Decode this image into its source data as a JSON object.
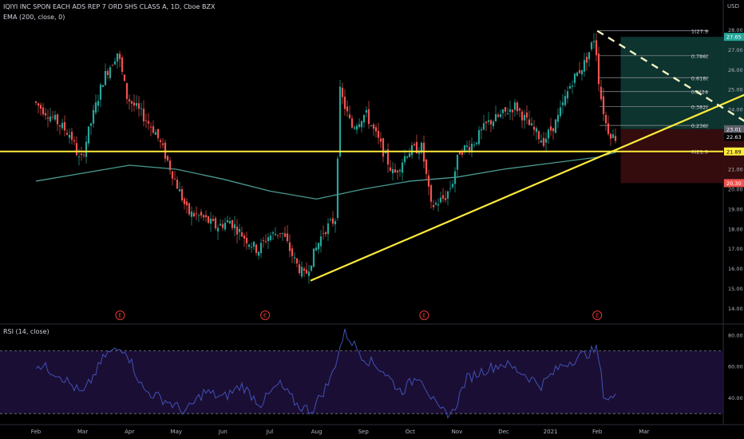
{
  "header": {
    "symbol_line": "IQIYI INC SPON EACH ADS REP 7 ORD SHS CLASS A, 1D, Cboe BZX",
    "ema_line": "EMA (200, close, 0)",
    "rsi_line": "RSI (14, close)",
    "currency": "USD"
  },
  "colors": {
    "background": "#000000",
    "up": "#26a69a",
    "down": "#ef5350",
    "trendline": "#ffeb3b",
    "ema": "#4a9b93",
    "rsi_line": "#3f51b5",
    "rsi_band": "#1e0f3a",
    "target_zone": "#0f3a34",
    "stop_zone": "#3a0d10",
    "earnings": "#e53935"
  },
  "chart_data": [
    {
      "type": "candlestick",
      "title": "IQIYI INC SPON EACH ADS REP 7 ORD SHS CLASS A, 1D, Cboe BZX",
      "x_ticks": [
        "Feb",
        "Mar",
        "Apr",
        "May",
        "Jun",
        "Jul",
        "Aug",
        "Sep",
        "Oct",
        "Nov",
        "Dec",
        "2021",
        "Feb",
        "Mar"
      ],
      "y_ticks": [
        14.0,
        15.0,
        16.0,
        17.0,
        18.0,
        19.0,
        20.0,
        21.0,
        22.0,
        23.0,
        24.0,
        25.0,
        26.0,
        27.0,
        28.0
      ],
      "ylim": [
        13.3,
        29.5
      ],
      "price_path": [
        {
          "x": 0.0,
          "y": 24.4
        },
        {
          "x": 0.4,
          "y": 23.6
        },
        {
          "x": 0.8,
          "y": 22.7
        },
        {
          "x": 1.0,
          "y": 21.3
        },
        {
          "x": 1.2,
          "y": 23.1
        },
        {
          "x": 1.5,
          "y": 25.6
        },
        {
          "x": 1.8,
          "y": 26.9
        },
        {
          "x": 2.0,
          "y": 24.6
        },
        {
          "x": 2.3,
          "y": 23.8
        },
        {
          "x": 2.6,
          "y": 22.9
        },
        {
          "x": 2.8,
          "y": 21.8
        },
        {
          "x": 3.0,
          "y": 20.6
        },
        {
          "x": 3.3,
          "y": 18.8
        },
        {
          "x": 3.6,
          "y": 18.6
        },
        {
          "x": 3.9,
          "y": 18.1
        },
        {
          "x": 4.2,
          "y": 18.4
        },
        {
          "x": 4.5,
          "y": 17.6
        },
        {
          "x": 4.8,
          "y": 16.9
        },
        {
          "x": 5.0,
          "y": 17.6
        },
        {
          "x": 5.3,
          "y": 17.9
        },
        {
          "x": 5.6,
          "y": 16.3
        },
        {
          "x": 5.8,
          "y": 15.6
        },
        {
          "x": 6.0,
          "y": 16.8
        },
        {
          "x": 6.2,
          "y": 17.9
        },
        {
          "x": 6.45,
          "y": 18.5
        },
        {
          "x": 6.55,
          "y": 24.9
        },
        {
          "x": 6.8,
          "y": 23.1
        },
        {
          "x": 7.1,
          "y": 23.8
        },
        {
          "x": 7.4,
          "y": 22.3
        },
        {
          "x": 7.7,
          "y": 20.7
        },
        {
          "x": 8.0,
          "y": 21.9
        },
        {
          "x": 8.3,
          "y": 22.1
        },
        {
          "x": 8.5,
          "y": 19.1
        },
        {
          "x": 8.8,
          "y": 19.6
        },
        {
          "x": 8.95,
          "y": 20.3
        },
        {
          "x": 9.1,
          "y": 21.9
        },
        {
          "x": 9.4,
          "y": 22.3
        },
        {
          "x": 9.7,
          "y": 23.3
        },
        {
          "x": 10.0,
          "y": 23.7
        },
        {
          "x": 10.3,
          "y": 24.2
        },
        {
          "x": 10.6,
          "y": 23.2
        },
        {
          "x": 10.9,
          "y": 22.4
        },
        {
          "x": 11.2,
          "y": 23.5
        },
        {
          "x": 11.5,
          "y": 25.4
        },
        {
          "x": 11.8,
          "y": 26.4
        },
        {
          "x": 12.0,
          "y": 27.7
        },
        {
          "x": 12.1,
          "y": 25.0
        },
        {
          "x": 12.25,
          "y": 23.1
        },
        {
          "x": 12.4,
          "y": 22.6
        }
      ],
      "ema200_path": [
        {
          "x": 0.0,
          "y": 20.4
        },
        {
          "x": 1.0,
          "y": 20.8
        },
        {
          "x": 2.0,
          "y": 21.2
        },
        {
          "x": 3.0,
          "y": 21.0
        },
        {
          "x": 4.0,
          "y": 20.5
        },
        {
          "x": 5.0,
          "y": 19.9
        },
        {
          "x": 6.0,
          "y": 19.5
        },
        {
          "x": 7.0,
          "y": 20.0
        },
        {
          "x": 8.0,
          "y": 20.4
        },
        {
          "x": 9.0,
          "y": 20.6
        },
        {
          "x": 10.0,
          "y": 21.0
        },
        {
          "x": 11.0,
          "y": 21.3
        },
        {
          "x": 12.0,
          "y": 21.6
        },
        {
          "x": 12.4,
          "y": 21.85
        }
      ],
      "horizontal_line": 21.89,
      "trend_up": {
        "from": {
          "x": 5.87,
          "y": 15.4
        },
        "to": {
          "x": 16.4,
          "y": 26.0
        }
      },
      "trend_down_dashed": {
        "from": {
          "x": 12.0,
          "y": 27.95
        },
        "to": {
          "x": 16.2,
          "y": 21.9
        }
      },
      "fibonacci": [
        {
          "label": "1(27.9",
          "value": 27.95
        },
        {
          "label": "0.786(",
          "value": 26.7
        },
        {
          "label": "0.618(",
          "value": 25.6
        },
        {
          "label": "0.5(24",
          "value": 24.9
        },
        {
          "label": "0.382(",
          "value": 24.15
        },
        {
          "label": "0.236(",
          "value": 23.2
        },
        {
          "label": "0(21.9",
          "value": 21.9
        }
      ],
      "position_tool": {
        "x_start": 12.5,
        "x_end": 15.25,
        "target": 27.65,
        "entry": 23.01,
        "stop": 20.3
      },
      "price_labels": [
        {
          "text": "27.65",
          "value": 27.65,
          "bg": "#26a69a"
        },
        {
          "text": "23.01",
          "value": 23.01,
          "bg": "#5d606b"
        },
        {
          "text": "22.63",
          "value": 22.63,
          "bg": "#000000"
        },
        {
          "text": "21.89",
          "value": 21.89,
          "bg": "#ffeb3b"
        },
        {
          "text": "20.30",
          "value": 20.3,
          "bg": "#ef5350"
        }
      ],
      "earnings_marks": [
        {
          "text": "E",
          "x": 1.8
        },
        {
          "text": "E",
          "x": 4.9
        },
        {
          "text": "E",
          "x": 8.3
        },
        {
          "text": "E",
          "x": 12.0
        },
        {
          "text": "E",
          "x": 15.9
        }
      ]
    },
    {
      "type": "line",
      "title": "RSI (14, close)",
      "y_ticks": [
        40.0,
        60.0,
        80.0
      ],
      "ylim": [
        24,
        86
      ],
      "bands": [
        30,
        70
      ],
      "values": [
        {
          "x": 0.0,
          "y": 62
        },
        {
          "x": 0.5,
          "y": 55
        },
        {
          "x": 1.0,
          "y": 42
        },
        {
          "x": 1.5,
          "y": 68
        },
        {
          "x": 1.9,
          "y": 72
        },
        {
          "x": 2.3,
          "y": 45
        },
        {
          "x": 2.8,
          "y": 38
        },
        {
          "x": 3.2,
          "y": 31
        },
        {
          "x": 3.6,
          "y": 44
        },
        {
          "x": 4.0,
          "y": 40
        },
        {
          "x": 4.4,
          "y": 48
        },
        {
          "x": 4.8,
          "y": 36
        },
        {
          "x": 5.2,
          "y": 49
        },
        {
          "x": 5.6,
          "y": 35
        },
        {
          "x": 5.9,
          "y": 32
        },
        {
          "x": 6.3,
          "y": 52
        },
        {
          "x": 6.6,
          "y": 82
        },
        {
          "x": 7.0,
          "y": 66
        },
        {
          "x": 7.4,
          "y": 58
        },
        {
          "x": 7.8,
          "y": 44
        },
        {
          "x": 8.2,
          "y": 55
        },
        {
          "x": 8.6,
          "y": 32
        },
        {
          "x": 8.9,
          "y": 30
        },
        {
          "x": 9.2,
          "y": 52
        },
        {
          "x": 9.6,
          "y": 58
        },
        {
          "x": 10.0,
          "y": 62
        },
        {
          "x": 10.4,
          "y": 56
        },
        {
          "x": 10.8,
          "y": 48
        },
        {
          "x": 11.2,
          "y": 60
        },
        {
          "x": 11.6,
          "y": 66
        },
        {
          "x": 12.0,
          "y": 71
        },
        {
          "x": 12.15,
          "y": 40
        },
        {
          "x": 12.4,
          "y": 40
        }
      ]
    }
  ]
}
